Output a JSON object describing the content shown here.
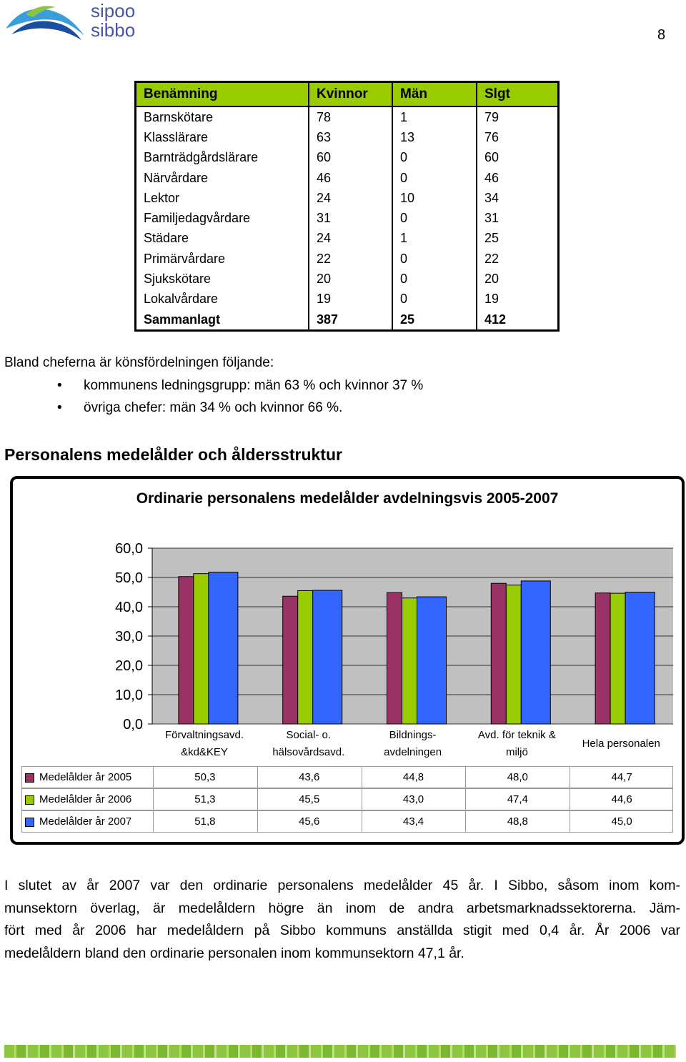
{
  "header": {
    "logo_lines": [
      "sipoo",
      "sibbo"
    ],
    "page_number": "8"
  },
  "table": {
    "columns": [
      "Benämning",
      "Kvinnor",
      "Män",
      "Slgt"
    ],
    "rows": [
      [
        "Barnskötare",
        78,
        1,
        79
      ],
      [
        "Klasslärare",
        63,
        13,
        76
      ],
      [
        "Barnträdgårdslärare",
        60,
        0,
        60
      ],
      [
        "Närvårdare",
        46,
        0,
        46
      ],
      [
        "Lektor",
        24,
        10,
        34
      ],
      [
        "Familjedagvårdare",
        31,
        0,
        31
      ],
      [
        "Städare",
        24,
        1,
        25
      ],
      [
        "Primärvårdare",
        22,
        0,
        22
      ],
      [
        "Sjukskötare",
        20,
        0,
        20
      ],
      [
        "Lokalvårdare",
        19,
        0,
        19
      ]
    ],
    "total": [
      "Sammanlagt",
      387,
      25,
      412
    ]
  },
  "intro": "Bland cheferna är könsfördelningen följande:",
  "bullets": [
    "kommunens ledningsgrupp: män 63 % och kvinnor 37 %",
    "övriga chefer: män 34 % och kvinnor 66 %."
  ],
  "section_heading": "Personalens medelålder och åldersstruktur",
  "chart_data": {
    "type": "bar",
    "title": "Ordinarie personalens medelålder avdelningsvis 2005-2007",
    "categories": [
      "Förvaltningsavd.\n&kd&KEY",
      "Social- o.\nhälsovårdsavd.",
      "Bildnings-\navdelningen",
      "Avd. för teknik &\nmiljö",
      "Hela personalen"
    ],
    "series": [
      {
        "name": "Medelålder år 2005",
        "color": "#993366",
        "values": [
          50.3,
          43.6,
          44.8,
          48.0,
          44.7
        ],
        "value_labels": [
          "50,3",
          "43,6",
          "44,8",
          "48,0",
          "44,7"
        ]
      },
      {
        "name": "Medelålder år 2006",
        "color": "#99cc00",
        "values": [
          51.3,
          45.5,
          43.0,
          47.4,
          44.6
        ],
        "value_labels": [
          "51,3",
          "45,5",
          "43,0",
          "47,4",
          "44,6"
        ]
      },
      {
        "name": "Medelålder år 2007",
        "color": "#3366ff",
        "values": [
          51.8,
          45.6,
          43.4,
          48.8,
          45.0
        ],
        "value_labels": [
          "51,8",
          "45,6",
          "43,4",
          "48,8",
          "45,0"
        ]
      }
    ],
    "ylim": [
      0,
      60
    ],
    "yticks": [
      {
        "value": 0,
        "label": "0,0"
      },
      {
        "value": 10,
        "label": "10,0"
      },
      {
        "value": 20,
        "label": "20,0"
      },
      {
        "value": 30,
        "label": "30,0"
      },
      {
        "value": 40,
        "label": "40,0"
      },
      {
        "value": 50,
        "label": "50,0"
      },
      {
        "value": 60,
        "label": "60,0"
      }
    ],
    "grid": true
  },
  "closing_lines": [
    "I slutet av år 2007 var den ordinarie personalens medelålder 45 år. I Sibbo, såsom inom kom-",
    "munsektorn överlag, är medelåldern högre än inom de andra arbetsmarknadssektorerna. Jäm-",
    "fört med år 2006 har medelåldern på Sibbo kommuns anställda stigit med 0,4 år. År 2006 var",
    "medelåldern bland den ordinarie personalen inom kommunsektorn 47,1 år."
  ]
}
